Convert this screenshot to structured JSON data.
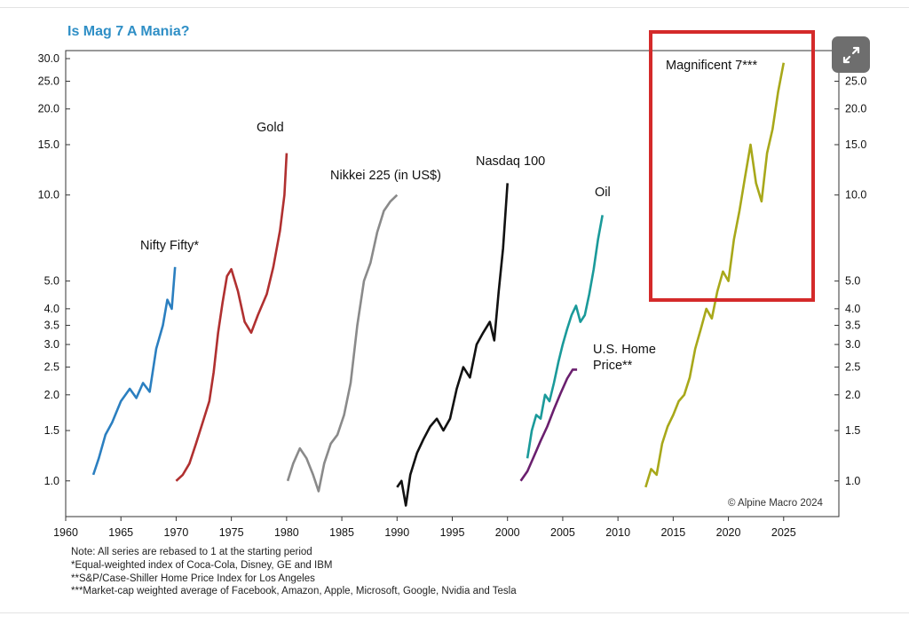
{
  "chart_data": {
    "type": "line",
    "title": "Is Mag 7 A Mania?",
    "y_scale": "log",
    "ylim": [
      0.75,
      32
    ],
    "xlim": [
      1960,
      2030
    ],
    "x_ticks": [
      "1960",
      "1965",
      "1970",
      "1975",
      "1980",
      "1985",
      "1990",
      "1995",
      "2000",
      "2005",
      "2010",
      "2015",
      "2020",
      "2025"
    ],
    "y_ticks": [
      {
        "value": 1.0,
        "label": "1.0"
      },
      {
        "value": 1.5,
        "label": "1.5"
      },
      {
        "value": 2.0,
        "label": "2.0"
      },
      {
        "value": 2.5,
        "label": "2.5"
      },
      {
        "value": 3.0,
        "label": "3.0"
      },
      {
        "value": 3.5,
        "label": "3.5"
      },
      {
        "value": 4.0,
        "label": "4.0"
      },
      {
        "value": 5.0,
        "label": "5.0"
      },
      {
        "value": 10.0,
        "label": "10.0"
      },
      {
        "value": 15.0,
        "label": "15.0"
      },
      {
        "value": 20.0,
        "label": "20.0"
      },
      {
        "value": 25.0,
        "label": "25.0"
      },
      {
        "value": 30.0,
        "label": "30.0"
      }
    ],
    "grid": false,
    "credit": "© Alpine Macro 2024",
    "series": [
      {
        "name": "Nifty Fifty*",
        "color": "#2b7fc0",
        "x": [
          1962.5,
          1963.0,
          1963.6,
          1964.2,
          1965.0,
          1965.8,
          1966.4,
          1967.0,
          1967.6,
          1968.2,
          1968.8,
          1969.2,
          1969.6,
          1969.9
        ],
        "y": [
          1.05,
          1.2,
          1.45,
          1.6,
          1.9,
          2.1,
          1.95,
          2.2,
          2.05,
          2.9,
          3.5,
          4.3,
          4.0,
          5.6
        ]
      },
      {
        "name": "Gold",
        "color": "#b03030",
        "x": [
          1970.0,
          1970.6,
          1971.2,
          1971.8,
          1972.4,
          1973.0,
          1973.4,
          1973.8,
          1974.2,
          1974.6,
          1975.0,
          1975.6,
          1976.2,
          1976.8,
          1977.4,
          1978.2,
          1978.8,
          1979.4,
          1979.8,
          1980.0
        ],
        "y": [
          1.0,
          1.05,
          1.15,
          1.35,
          1.6,
          1.9,
          2.4,
          3.3,
          4.2,
          5.2,
          5.5,
          4.6,
          3.6,
          3.3,
          3.8,
          4.5,
          5.6,
          7.5,
          10.0,
          14.0
        ]
      },
      {
        "name": "Nikkei 225 (in US$)",
        "color": "#8a8a8a",
        "x": [
          1980.1,
          1980.6,
          1981.2,
          1981.8,
          1982.4,
          1982.9,
          1983.4,
          1984.0,
          1984.6,
          1985.2,
          1985.8,
          1986.4,
          1987.0,
          1987.6,
          1988.2,
          1988.8,
          1989.4,
          1990.0
        ],
        "y": [
          1.0,
          1.15,
          1.3,
          1.2,
          1.05,
          0.92,
          1.15,
          1.35,
          1.45,
          1.7,
          2.2,
          3.5,
          5.0,
          5.8,
          7.4,
          8.8,
          9.5,
          10.0
        ]
      },
      {
        "name": "Nasdaq 100",
        "color": "#111111",
        "x": [
          1990.0,
          1990.4,
          1990.8,
          1991.2,
          1991.8,
          1992.4,
          1993.0,
          1993.6,
          1994.2,
          1994.8,
          1995.4,
          1996.0,
          1996.6,
          1997.2,
          1997.8,
          1998.4,
          1998.8,
          1999.2,
          1999.6,
          2000.0
        ],
        "y": [
          0.95,
          1.0,
          0.82,
          1.05,
          1.25,
          1.4,
          1.55,
          1.65,
          1.5,
          1.65,
          2.1,
          2.5,
          2.3,
          3.0,
          3.3,
          3.6,
          3.1,
          4.6,
          6.5,
          11.0
        ]
      },
      {
        "name": "Oil",
        "color": "#1a9a9a",
        "x": [
          2001.8,
          2002.2,
          2002.6,
          2003.0,
          2003.4,
          2003.8,
          2004.2,
          2004.6,
          2005.0,
          2005.4,
          2005.8,
          2006.2,
          2006.6,
          2007.0,
          2007.4,
          2007.8,
          2008.2,
          2008.6
        ],
        "y": [
          1.2,
          1.5,
          1.7,
          1.65,
          2.0,
          1.9,
          2.2,
          2.6,
          3.0,
          3.4,
          3.8,
          4.1,
          3.6,
          3.8,
          4.5,
          5.5,
          7.0,
          8.5
        ]
      },
      {
        "name": "U.S. Home Price**",
        "color": "#6a1f6e",
        "x": [
          2001.2,
          2001.8,
          2002.4,
          2003.0,
          2003.6,
          2004.2,
          2004.8,
          2005.4,
          2005.9,
          2006.3
        ],
        "y": [
          1.0,
          1.08,
          1.22,
          1.38,
          1.55,
          1.78,
          2.02,
          2.28,
          2.45,
          2.45
        ]
      },
      {
        "name": "Magnificent 7***",
        "color": "#a8a81a",
        "x": [
          2012.5,
          2013.0,
          2013.5,
          2014.0,
          2014.5,
          2015.0,
          2015.5,
          2016.0,
          2016.5,
          2017.0,
          2017.5,
          2018.0,
          2018.5,
          2019.0,
          2019.5,
          2020.0,
          2020.5,
          2021.0,
          2021.5,
          2022.0,
          2022.5,
          2023.0,
          2023.5,
          2024.0,
          2024.5,
          2025.0
        ],
        "y": [
          0.95,
          1.1,
          1.05,
          1.35,
          1.55,
          1.7,
          1.9,
          2.0,
          2.3,
          2.9,
          3.4,
          4.0,
          3.7,
          4.6,
          5.4,
          5.0,
          7.0,
          8.8,
          11.5,
          15.0,
          11.0,
          9.5,
          14.0,
          17.0,
          23.0,
          29.0
        ]
      }
    ]
  },
  "notes": [
    "Note: All series are rebased to 1 at the starting period",
    "*Equal-weighted index of Coca-Cola, Disney, GE and IBM",
    "**S&P/Case-Shiller Home Price Index for Los Angeles",
    "***Market-cap weighted average of Facebook, Amazon, Apple, Microsoft, Google, Nvidia and Tesla"
  ],
  "highlight_color": "#d42a2a",
  "icons": {
    "expand": "expand-icon"
  }
}
